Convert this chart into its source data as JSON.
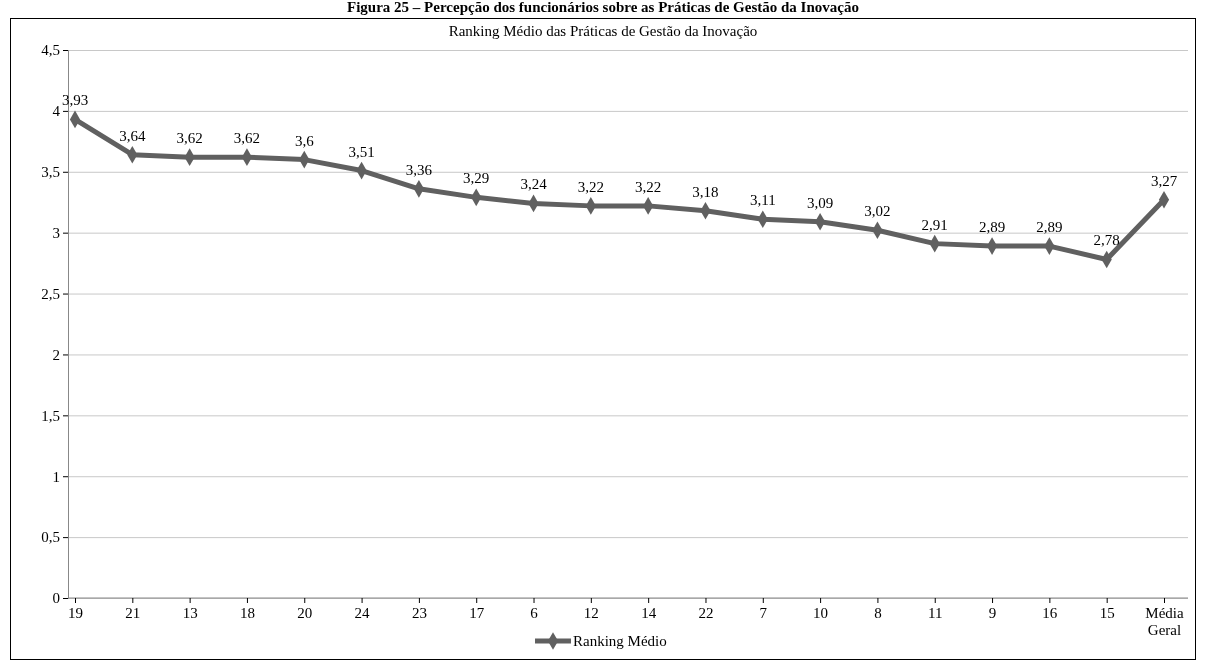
{
  "chart_data": {
    "type": "line",
    "title": "Ranking Médio das Práticas de Gestão da Inovação",
    "annotations": [
      "Figura 25 – Percepção dos funcionários sobre as Práticas de Gestão da Inovação"
    ],
    "categories": [
      "19",
      "21",
      "13",
      "18",
      "20",
      "24",
      "23",
      "17",
      "6",
      "12",
      "14",
      "22",
      "7",
      "10",
      "8",
      "11",
      "9",
      "16",
      "15",
      "Média Geral"
    ],
    "series": [
      {
        "name": "Ranking Médio",
        "color": "#606060",
        "values": [
          3.93,
          3.64,
          3.62,
          3.62,
          3.6,
          3.51,
          3.36,
          3.29,
          3.24,
          3.22,
          3.22,
          3.18,
          3.11,
          3.09,
          3.02,
          2.91,
          2.89,
          2.89,
          2.78,
          3.27
        ],
        "value_labels": [
          "3,93",
          "3,64",
          "3,62",
          "3,62",
          "3,6",
          "3,51",
          "3,36",
          "3,29",
          "3,24",
          "3,22",
          "3,22",
          "3,18",
          "3,11",
          "3,09",
          "3,02",
          "2,91",
          "2,89",
          "2,89",
          "2,78",
          "3,27"
        ]
      }
    ],
    "ylim": [
      0,
      4.5
    ],
    "yticks": [
      0,
      {
        "value": 0.5,
        "label": "0,5"
      },
      1,
      {
        "value": 1.5,
        "label": "1,5"
      },
      2,
      {
        "value": 2.5,
        "label": "2,5"
      },
      3,
      {
        "value": 3.5,
        "label": "3,5"
      },
      4,
      {
        "value": 4.5,
        "label": "4,5"
      }
    ],
    "grid": "y",
    "legend": "bottom",
    "marker": "diamond",
    "line_style": "solid"
  }
}
